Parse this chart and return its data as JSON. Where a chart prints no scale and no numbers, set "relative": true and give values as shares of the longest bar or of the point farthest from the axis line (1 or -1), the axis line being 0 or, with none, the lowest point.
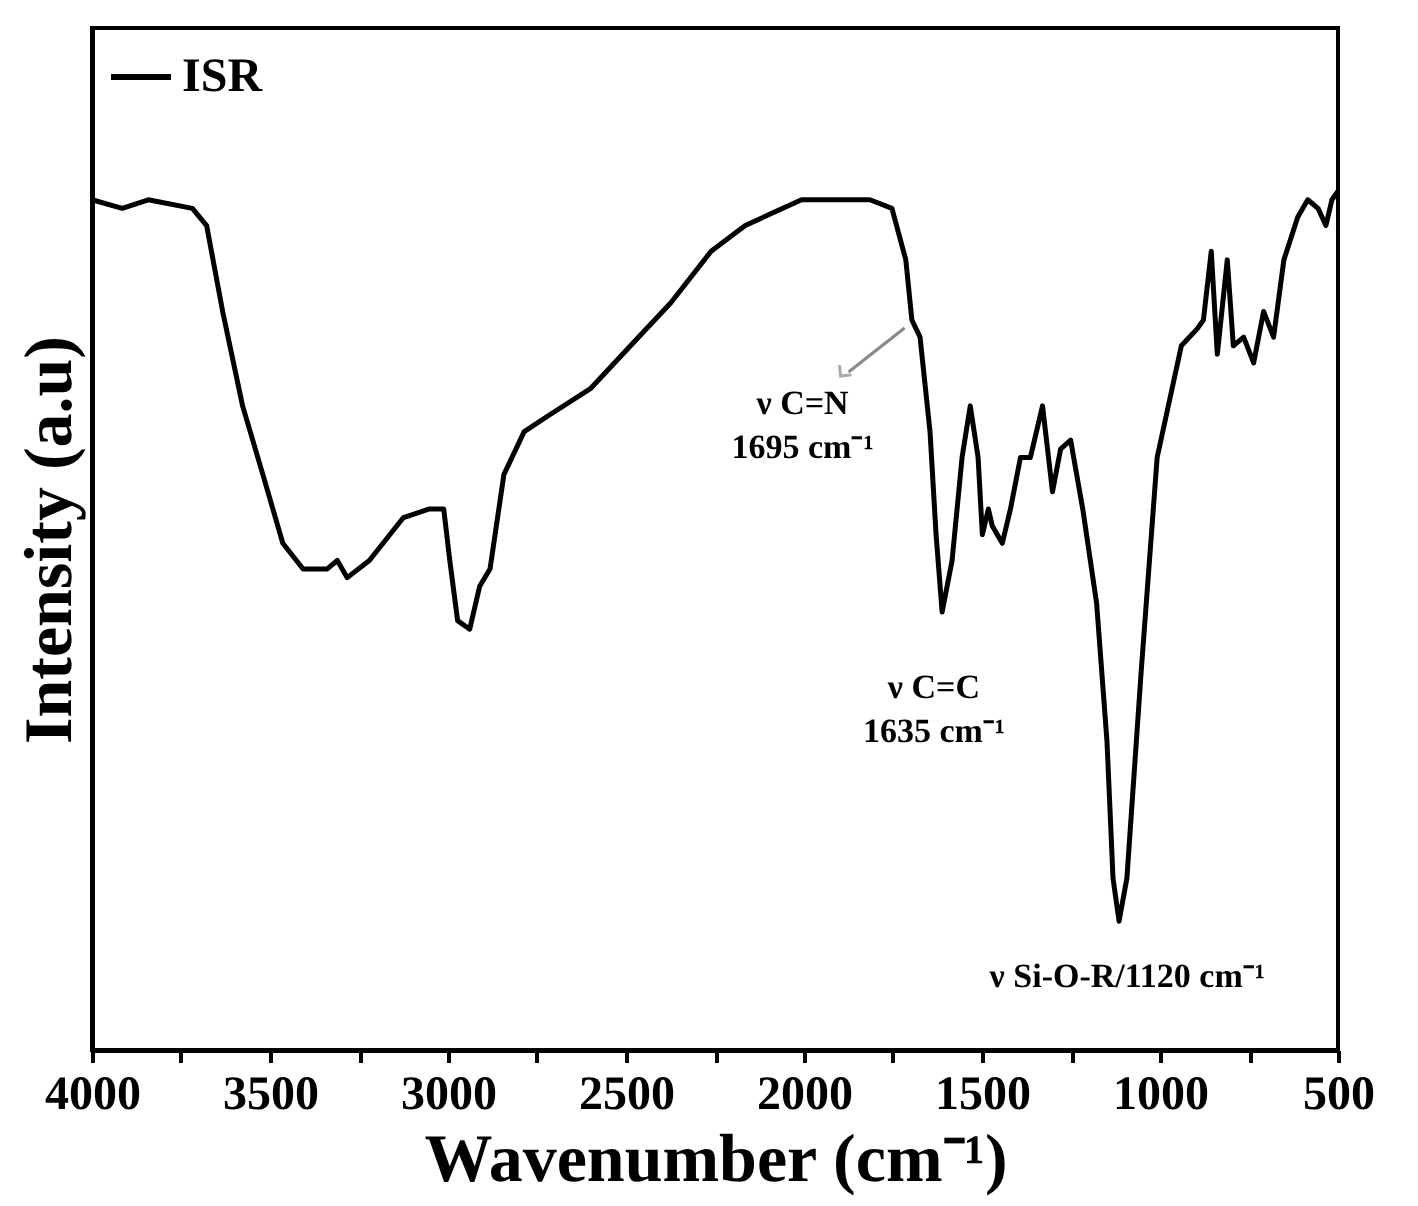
{
  "chart_data": {
    "type": "line",
    "relative": true,
    "xlabel": "Wavenumber (cm⁻¹)",
    "ylabel": "Intensity (a.u)",
    "xlim": [
      4000,
      500
    ],
    "xticks": [
      4000,
      {
        "value": 3750,
        "label": null
      },
      3500,
      {
        "value": 3250,
        "label": null
      },
      3000,
      {
        "value": 2750,
        "label": null
      },
      2500,
      {
        "value": 2250,
        "label": null
      },
      2000,
      {
        "value": 1750,
        "label": null
      },
      1500,
      {
        "value": 1250,
        "label": null
      },
      1000,
      {
        "value": 750,
        "label": null
      },
      500
    ],
    "x": [
      4000,
      3915,
      3842,
      3718,
      3678,
      3633,
      3577,
      3520,
      3464,
      3407,
      3340,
      3311,
      3283,
      3221,
      3125,
      3052,
      3012,
      2995,
      2973,
      2939,
      2911,
      2882,
      2843,
      2786,
      2713,
      2600,
      2465,
      2374,
      2261,
      2165,
      2007,
      1815,
      1753,
      1714,
      1697,
      1674,
      1646,
      1629,
      1612,
      1584,
      1556,
      1533,
      1511,
      1499,
      1482,
      1471,
      1443,
      1420,
      1392,
      1364,
      1330,
      1302,
      1279,
      1251,
      1234,
      1217,
      1178,
      1149,
      1132,
      1115,
      1093,
      1053,
      1008,
      940,
      895,
      878,
      856,
      839,
      811,
      794,
      765,
      737,
      709,
      681,
      652,
      613,
      585,
      556,
      534,
      517,
      500
    ],
    "series": [
      {
        "name": "ISR",
        "color": "#000000",
        "values": [
          0.99,
          0.98,
          0.99,
          0.98,
          0.96,
          0.86,
          0.75,
          0.67,
          0.59,
          0.56,
          0.56,
          0.57,
          0.55,
          0.57,
          0.62,
          0.63,
          0.63,
          0.57,
          0.5,
          0.49,
          0.54,
          0.56,
          0.67,
          0.72,
          0.74,
          0.77,
          0.83,
          0.87,
          0.93,
          0.96,
          0.99,
          0.99,
          0.98,
          0.92,
          0.85,
          0.83,
          0.72,
          0.6,
          0.51,
          0.57,
          0.69,
          0.75,
          0.69,
          0.6,
          0.63,
          0.61,
          0.59,
          0.63,
          0.69,
          0.69,
          0.75,
          0.65,
          0.7,
          0.71,
          0.67,
          0.63,
          0.52,
          0.36,
          0.2,
          0.15,
          0.2,
          0.44,
          0.69,
          0.82,
          0.84,
          0.85,
          0.93,
          0.81,
          0.92,
          0.82,
          0.83,
          0.8,
          0.86,
          0.83,
          0.92,
          0.97,
          0.99,
          0.98,
          0.96,
          0.99,
          1.0
        ]
      }
    ],
    "annotations": [
      {
        "text": "ν C=N\n1695 cm⁻¹",
        "x": 1695,
        "y": 0.85
      },
      {
        "text": "ν C=C\n1635 cm⁻¹",
        "x": 1635,
        "y": 0.51
      },
      {
        "text": "ν Si-O-R/1120 cm⁻¹",
        "x": 1120,
        "y": 0.15
      }
    ],
    "legend": "top left",
    "grid": false,
    "line_style": "solid",
    "marker": "none"
  }
}
